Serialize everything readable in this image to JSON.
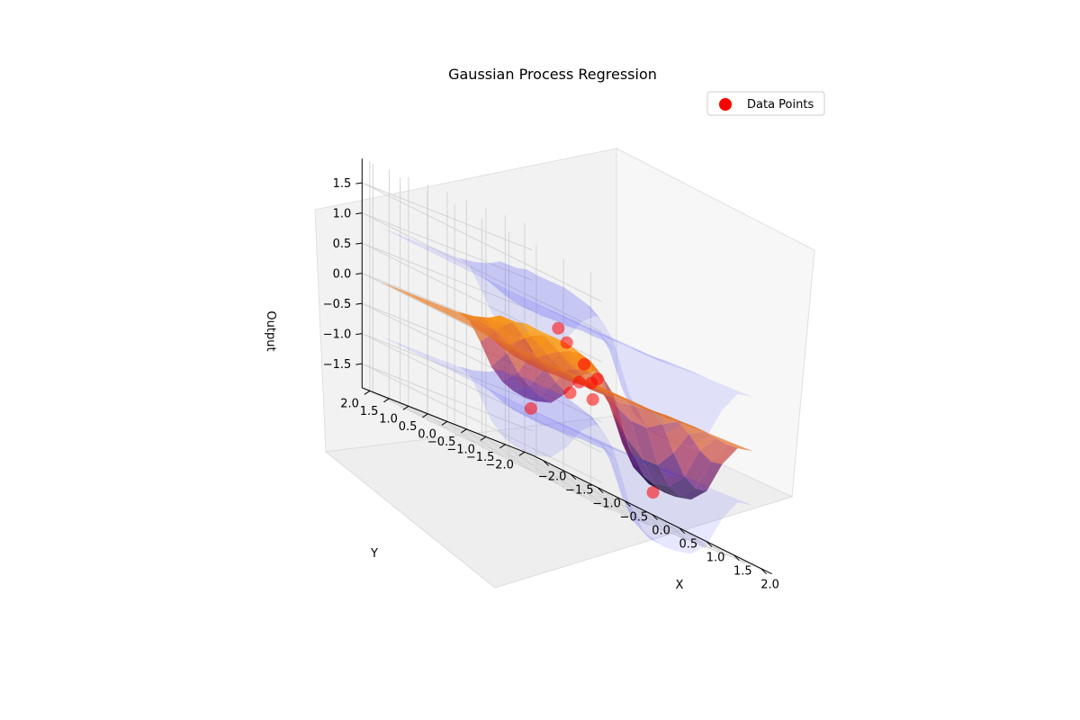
{
  "chart_data": {
    "type": "surface3d",
    "title": "Gaussian Process Regression",
    "xlabel": "X",
    "ylabel": "Y",
    "zlabel": "Output",
    "xlim": [
      -2.2,
      2.2
    ],
    "ylim": [
      -2.2,
      2.2
    ],
    "zlim": [
      -1.9,
      1.9
    ],
    "x_ticks": [
      "−2.0",
      "−1.5",
      "−1.0",
      "−0.5",
      "0.0",
      "0.5",
      "1.0",
      "1.5",
      "2.0"
    ],
    "y_ticks": [
      "−2.0",
      "−1.5",
      "−1.0",
      "−0.5",
      "0.0",
      "0.5",
      "1.0",
      "1.5",
      "2.0"
    ],
    "z_ticks": [
      "−1.5",
      "−1.0",
      "−0.5",
      "0.0",
      "0.5",
      "1.0",
      "1.5"
    ],
    "x_tick_values": [
      -2.0,
      -1.5,
      -1.0,
      -0.5,
      0.0,
      0.5,
      1.0,
      1.5,
      2.0
    ],
    "y_tick_values": [
      -2.0,
      -1.5,
      -1.0,
      -0.5,
      0.0,
      0.5,
      1.0,
      1.5,
      2.0
    ],
    "z_tick_values": [
      -1.5,
      -1.0,
      -0.5,
      0.0,
      0.5,
      1.0,
      1.5
    ],
    "grid": true,
    "legend": {
      "position": "top-right",
      "entries": [
        "Data Points"
      ]
    },
    "colors": {
      "points": "#ff0000",
      "confidence": "#0000ff",
      "surface_cmap": "inferno"
    },
    "series": [
      {
        "name": "Data Points",
        "kind": "scatter",
        "points": [
          {
            "x": -1.8,
            "y": -1.6,
            "z": -1.1
          },
          {
            "x": -1.0,
            "y": -1.4,
            "z": 0.3
          },
          {
            "x": -0.2,
            "y": -0.6,
            "z": -0.2
          },
          {
            "x": 0.6,
            "y": 0.4,
            "z": 0.2
          },
          {
            "x": 1.3,
            "y": 1.2,
            "z": 0.0
          },
          {
            "x": 0.2,
            "y": 0.2,
            "z": -0.4
          },
          {
            "x": 0.9,
            "y": 0.6,
            "z": -0.3
          },
          {
            "x": 1.2,
            "y": 0.9,
            "z": 0.1
          },
          {
            "x": -0.8,
            "y": -0.9,
            "z": 0.5
          },
          {
            "x": 0.3,
            "y": -1.8,
            "z": -1.5
          }
        ]
      }
    ]
  }
}
